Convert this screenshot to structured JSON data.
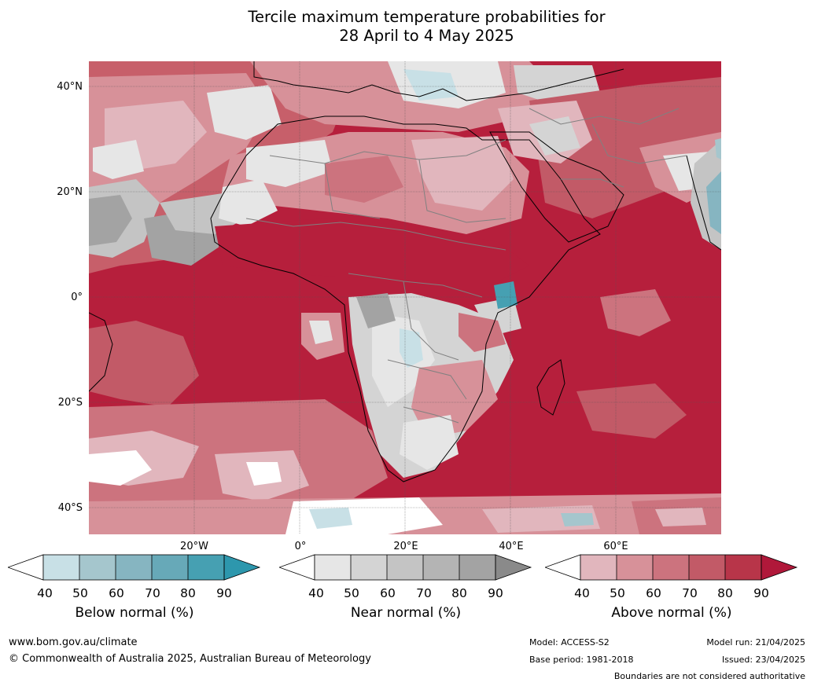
{
  "title_line1": "Tercile maximum temperature probabilities for",
  "title_line2": "28 April to 4 May 2025",
  "lat_labels": [
    "40°N",
    "20°N",
    "0°",
    "20°S",
    "40°S"
  ],
  "lon_labels": [
    "20°W",
    "0°",
    "20°E",
    "40°E",
    "60°E"
  ],
  "legends": [
    {
      "title": "Below normal (%)",
      "ticks": [
        "40",
        "50",
        "60",
        "70",
        "80",
        "90"
      ],
      "colors": [
        "#ffffff",
        "#c8e0e6",
        "#a5c6cd",
        "#86b5c1",
        "#67a9b8",
        "#46a0b2",
        "#2d97ad"
      ]
    },
    {
      "title": "Near normal (%)",
      "ticks": [
        "40",
        "50",
        "60",
        "70",
        "80",
        "90"
      ],
      "colors": [
        "#ffffff",
        "#e6e6e6",
        "#d4d4d4",
        "#c4c4c4",
        "#b4b4b4",
        "#a3a3a3",
        "#8a8a8a"
      ]
    },
    {
      "title": "Above normal (%)",
      "ticks": [
        "40",
        "50",
        "60",
        "70",
        "80",
        "90"
      ],
      "colors": [
        "#ffffff",
        "#e1b6bd",
        "#d79199",
        "#cc737e",
        "#c25a67",
        "#b83549",
        "#b0183a"
      ]
    }
  ],
  "footer": {
    "website": "www.bom.gov.au/climate",
    "copyright": "© Commonwealth of Australia 2025, Australian Bureau of Meteorology",
    "model": "Model: ACCESS-S2",
    "base_period": "Base period: 1981-2018",
    "model_run": "Model run: 21/04/2025",
    "issued": "Issued: 23/04/2025",
    "disclaimer": "Boundaries are not considered authoritative"
  }
}
